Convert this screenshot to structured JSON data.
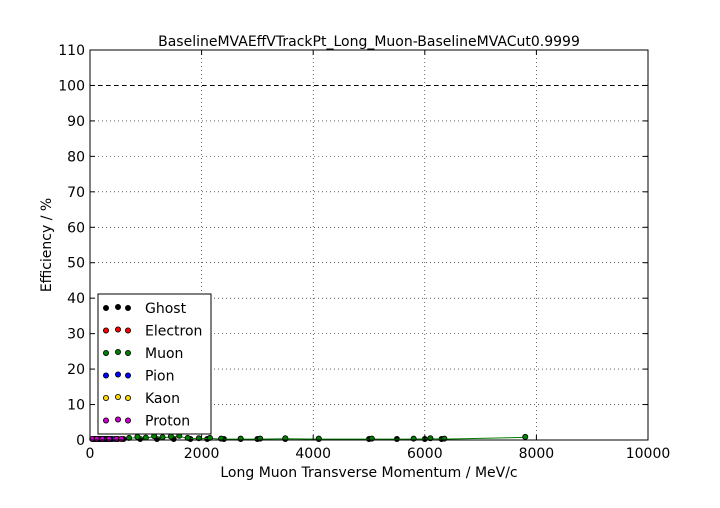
{
  "chart_data": {
    "type": "scatter",
    "title": "BaselineMVAEffVTrackPt_Long_Muon-BaselineMVACut0.9999",
    "xlabel": "Long Muon Transverse Momentum / MeV/c",
    "ylabel": "Efficiency / %",
    "xlim": [
      0,
      10000
    ],
    "ylim": [
      0,
      110
    ],
    "xticks": [
      0,
      2000,
      4000,
      6000,
      8000,
      10000
    ],
    "yticks": [
      0,
      10,
      20,
      30,
      40,
      50,
      60,
      70,
      80,
      90,
      100,
      110
    ],
    "grid": true,
    "legend_position": "lower-left",
    "reference_line": 100,
    "series": [
      {
        "name": "Ghost",
        "color": "#000000",
        "points": [
          [
            50,
            0
          ],
          [
            150,
            0
          ],
          [
            250,
            0
          ],
          [
            350,
            0
          ],
          [
            600,
            0
          ],
          [
            900,
            0
          ],
          [
            1200,
            0
          ],
          [
            1500,
            0
          ],
          [
            1800,
            0
          ],
          [
            2100,
            0
          ],
          [
            2400,
            0
          ],
          [
            2700,
            0
          ],
          [
            3000,
            0
          ],
          [
            3500,
            0
          ],
          [
            4100,
            0
          ],
          [
            5000,
            0
          ],
          [
            5500,
            0
          ],
          [
            6000,
            0
          ],
          [
            6300,
            0
          ]
        ]
      },
      {
        "name": "Electron",
        "color": "#ff0000",
        "points": [
          [
            60,
            0
          ],
          [
            130,
            0
          ],
          [
            210,
            0
          ],
          [
            300,
            0
          ],
          [
            400,
            0
          ],
          [
            500,
            0
          ]
        ]
      },
      {
        "name": "Muon",
        "color": "#008000",
        "points": [
          [
            700,
            0.3
          ],
          [
            850,
            0.6
          ],
          [
            1000,
            0.4
          ],
          [
            1150,
            0.8
          ],
          [
            1300,
            0.5
          ],
          [
            1450,
            0.7
          ],
          [
            1600,
            0.9
          ],
          [
            1750,
            0.3
          ],
          [
            1950,
            0.2
          ],
          [
            2150,
            0.3
          ],
          [
            2350,
            0.1
          ],
          [
            2700,
            0.1
          ],
          [
            3050,
            0.1
          ],
          [
            3500,
            0.2
          ],
          [
            4100,
            0.1
          ],
          [
            5050,
            0.1
          ],
          [
            5800,
            0.1
          ],
          [
            6100,
            0.2
          ],
          [
            6350,
            0.1
          ],
          [
            7800,
            0.6
          ]
        ]
      },
      {
        "name": "Pion",
        "color": "#0000ff",
        "points": [
          [
            80,
            0
          ],
          [
            180,
            0
          ],
          [
            280,
            0
          ],
          [
            380,
            0
          ]
        ]
      },
      {
        "name": "Kaon",
        "color": "#ffd700",
        "points": [
          [
            100,
            0
          ],
          [
            200,
            0
          ],
          [
            320,
            0
          ],
          [
            450,
            0
          ]
        ]
      },
      {
        "name": "Proton",
        "color": "#cc00cc",
        "points": [
          [
            40,
            0
          ],
          [
            120,
            0
          ],
          [
            220,
            0
          ],
          [
            340,
            0
          ],
          [
            470,
            0
          ],
          [
            560,
            0
          ]
        ]
      }
    ]
  }
}
